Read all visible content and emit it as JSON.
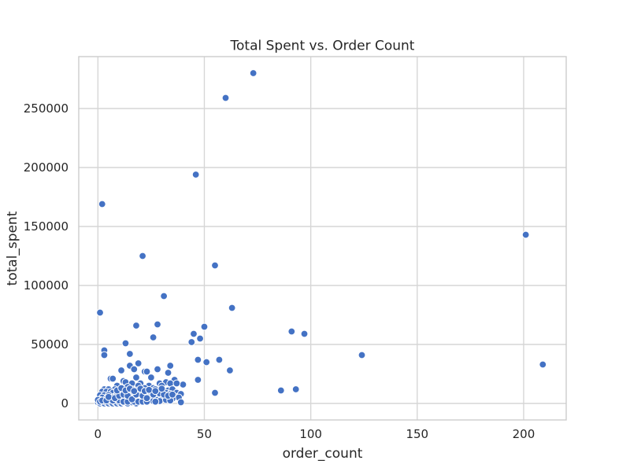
{
  "chart_data": {
    "type": "scatter",
    "title": "Total Spent vs. Order Count",
    "xlabel": "order_count",
    "ylabel": "total_spent",
    "xlim": [
      -9,
      220
    ],
    "ylim": [
      -14000,
      294000
    ],
    "xticks": [
      0,
      50,
      100,
      150,
      200
    ],
    "yticks": [
      0,
      50000,
      100000,
      150000,
      200000,
      250000
    ],
    "xtick_labels": [
      "0",
      "50",
      "100",
      "150",
      "200"
    ],
    "ytick_labels": [
      "0",
      "50000",
      "100000",
      "150000",
      "200000",
      "250000"
    ],
    "grid": true,
    "legend": "none",
    "color": "#4472c4",
    "series": [
      {
        "points": [
          [
            73,
            280000
          ],
          [
            60,
            259000
          ],
          [
            46,
            194000
          ],
          [
            2,
            169000
          ],
          [
            201,
            143000
          ],
          [
            21,
            125000
          ],
          [
            55,
            117000
          ],
          [
            31,
            91000
          ],
          [
            63,
            81000
          ],
          [
            1,
            77000
          ],
          [
            18,
            66000
          ],
          [
            28,
            67000
          ],
          [
            50,
            65000
          ],
          [
            91,
            61000
          ],
          [
            97,
            59000
          ],
          [
            45,
            59000
          ],
          [
            26,
            56000
          ],
          [
            48,
            55000
          ],
          [
            13,
            51000
          ],
          [
            44,
            52000
          ],
          [
            3,
            45000
          ],
          [
            3,
            41000
          ],
          [
            15,
            42000
          ],
          [
            124,
            41000
          ],
          [
            47,
            37000
          ],
          [
            57,
            37000
          ],
          [
            51,
            35000
          ],
          [
            209,
            33000
          ],
          [
            19,
            34000
          ],
          [
            15,
            32000
          ],
          [
            34,
            32000
          ],
          [
            11,
            28000
          ],
          [
            17,
            29000
          ],
          [
            22,
            27000
          ],
          [
            23,
            27000
          ],
          [
            28,
            29000
          ],
          [
            33,
            26000
          ],
          [
            62,
            28000
          ],
          [
            6,
            21000
          ],
          [
            7,
            21000
          ],
          [
            18,
            22000
          ],
          [
            25,
            22000
          ],
          [
            36,
            20000
          ],
          [
            47,
            20000
          ],
          [
            12,
            19000
          ],
          [
            13,
            18000
          ],
          [
            16,
            17000
          ],
          [
            20,
            17000
          ],
          [
            29,
            17000
          ],
          [
            32,
            18000
          ],
          [
            40,
            16000
          ],
          [
            34,
            17000
          ],
          [
            37,
            17000
          ],
          [
            9,
            15000
          ],
          [
            14,
            14000
          ],
          [
            19,
            15000
          ],
          [
            24,
            15000
          ],
          [
            30,
            15000
          ],
          [
            26,
            13000
          ],
          [
            22,
            13000
          ],
          [
            3,
            12000
          ],
          [
            5,
            12000
          ],
          [
            8,
            12000
          ],
          [
            11,
            12000
          ],
          [
            16,
            12000
          ],
          [
            18,
            11000
          ],
          [
            21,
            11000
          ],
          [
            27,
            12000
          ],
          [
            31,
            11000
          ],
          [
            33,
            11000
          ],
          [
            35,
            12000
          ],
          [
            93,
            12000
          ],
          [
            86,
            11000
          ],
          [
            2,
            10000
          ],
          [
            4,
            10000
          ],
          [
            6,
            10000
          ],
          [
            7,
            9000
          ],
          [
            10,
            9000
          ],
          [
            12,
            9000
          ],
          [
            14,
            10000
          ],
          [
            15,
            9000
          ],
          [
            17,
            8000
          ],
          [
            19,
            9000
          ],
          [
            20,
            8000
          ],
          [
            23,
            9000
          ],
          [
            25,
            8000
          ],
          [
            28,
            9000
          ],
          [
            30,
            8000
          ],
          [
            32,
            9000
          ],
          [
            34,
            8000
          ],
          [
            37,
            9000
          ],
          [
            39,
            8000
          ],
          [
            55,
            9000
          ],
          [
            1,
            7000
          ],
          [
            3,
            7000
          ],
          [
            5,
            7000
          ],
          [
            8,
            6000
          ],
          [
            9,
            7000
          ],
          [
            11,
            6000
          ],
          [
            13,
            7000
          ],
          [
            16,
            6000
          ],
          [
            18,
            6000
          ],
          [
            20,
            5000
          ],
          [
            22,
            6000
          ],
          [
            24,
            5000
          ],
          [
            26,
            6000
          ],
          [
            27,
            5000
          ],
          [
            29,
            6000
          ],
          [
            31,
            5000
          ],
          [
            33,
            5000
          ],
          [
            36,
            6000
          ],
          [
            38,
            5000
          ],
          [
            2,
            5000
          ],
          [
            4,
            4000
          ],
          [
            6,
            4000
          ],
          [
            7,
            5000
          ],
          [
            10,
            4000
          ],
          [
            12,
            4000
          ],
          [
            14,
            4000
          ],
          [
            15,
            5000
          ],
          [
            17,
            4000
          ],
          [
            19,
            4000
          ],
          [
            21,
            3000
          ],
          [
            23,
            3000
          ],
          [
            25,
            4000
          ],
          [
            28,
            3000
          ],
          [
            30,
            4000
          ],
          [
            35,
            4000
          ],
          [
            1,
            3000
          ],
          [
            3,
            2000
          ],
          [
            5,
            2000
          ],
          [
            6,
            3000
          ],
          [
            8,
            2000
          ],
          [
            9,
            3000
          ],
          [
            11,
            2000
          ],
          [
            13,
            2000
          ],
          [
            16,
            2000
          ],
          [
            18,
            3000
          ],
          [
            20,
            2000
          ],
          [
            22,
            2000
          ],
          [
            24,
            3000
          ],
          [
            26,
            2000
          ],
          [
            29,
            2000
          ],
          [
            32,
            3000
          ],
          [
            39,
            1000
          ],
          [
            0,
            1000
          ],
          [
            1,
            0
          ],
          [
            2,
            1000
          ],
          [
            3,
            0
          ],
          [
            4,
            1000
          ],
          [
            5,
            0
          ],
          [
            6,
            1000
          ],
          [
            7,
            0
          ],
          [
            8,
            1000
          ],
          [
            9,
            0
          ],
          [
            10,
            1000
          ],
          [
            11,
            0
          ],
          [
            12,
            1000
          ],
          [
            14,
            0
          ],
          [
            16,
            1000
          ],
          [
            18,
            0
          ],
          [
            0,
            3000
          ],
          [
            1,
            1500
          ],
          [
            2,
            2500
          ],
          [
            4,
            2500
          ],
          [
            7,
            2500
          ],
          [
            10,
            2500
          ],
          [
            12,
            1500
          ],
          [
            14,
            1500
          ],
          [
            17,
            1500
          ],
          [
            19,
            1500
          ],
          [
            21,
            1500
          ],
          [
            23,
            1500
          ],
          [
            27,
            1500
          ],
          [
            34,
            2500
          ],
          [
            5,
            5500
          ],
          [
            8,
            4500
          ],
          [
            10,
            6500
          ],
          [
            12,
            7500
          ],
          [
            14,
            6500
          ],
          [
            16,
            3500
          ],
          [
            18,
            7500
          ],
          [
            21,
            6500
          ],
          [
            23,
            4500
          ],
          [
            26,
            7500
          ],
          [
            29,
            8500
          ],
          [
            31,
            7500
          ],
          [
            33,
            6500
          ],
          [
            35,
            7500
          ],
          [
            9,
            11000
          ],
          [
            11,
            13000
          ],
          [
            13,
            11000
          ],
          [
            15,
            12500
          ],
          [
            17,
            10500
          ],
          [
            20,
            12500
          ],
          [
            22,
            10500
          ],
          [
            24,
            11500
          ],
          [
            27,
            10500
          ],
          [
            30,
            12500
          ]
        ]
      }
    ]
  }
}
